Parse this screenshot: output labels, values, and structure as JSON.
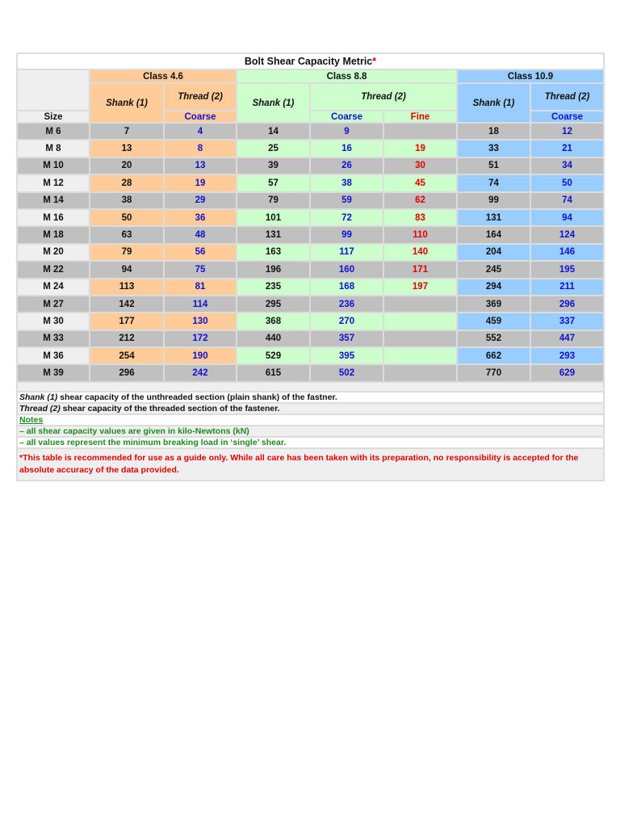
{
  "title": "Bolt Shear Capacity Metric",
  "title_mark": "*",
  "headers": {
    "size": "Size",
    "class46": "Class 4.6",
    "class88": "Class 8.8",
    "class109": "Class 10.9",
    "shank": "Shank (1)",
    "thread": "Thread (2)",
    "coarse": "Coarse",
    "fine": "Fine"
  },
  "colors": {
    "class46": "#ffcc99",
    "class88": "#ccffcc",
    "class109": "#99ccff",
    "thread_value": "#1010d0",
    "fine_value": "#e00000",
    "notes": "#1a8a1a"
  },
  "rows": [
    [
      "M 6",
      "7",
      "4",
      "14",
      "9",
      "",
      "18",
      "12"
    ],
    [
      "M 8",
      "13",
      "8",
      "25",
      "16",
      "19",
      "33",
      "21"
    ],
    [
      "M 10",
      "20",
      "13",
      "39",
      "26",
      "30",
      "51",
      "34"
    ],
    [
      "M 12",
      "28",
      "19",
      "57",
      "38",
      "45",
      "74",
      "50"
    ],
    [
      "M 14",
      "38",
      "29",
      "79",
      "59",
      "62",
      "99",
      "74"
    ],
    [
      "M 16",
      "50",
      "36",
      "101",
      "72",
      "83",
      "131",
      "94"
    ],
    [
      "M 18",
      "63",
      "48",
      "131",
      "99",
      "110",
      "164",
      "124"
    ],
    [
      "M 20",
      "79",
      "56",
      "163",
      "117",
      "140",
      "204",
      "146"
    ],
    [
      "M 22",
      "94",
      "75",
      "196",
      "160",
      "171",
      "245",
      "195"
    ],
    [
      "M 24",
      "113",
      "81",
      "235",
      "168",
      "197",
      "294",
      "211"
    ],
    [
      "M 27",
      "142",
      "114",
      "295",
      "236",
      "",
      "369",
      "296"
    ],
    [
      "M 30",
      "177",
      "130",
      "368",
      "270",
      "",
      "459",
      "337"
    ],
    [
      "M 33",
      "212",
      "172",
      "440",
      "357",
      "",
      "552",
      "447"
    ],
    [
      "M 36",
      "254",
      "190",
      "529",
      "395",
      "",
      "662",
      "293"
    ],
    [
      "M 39",
      "296",
      "242",
      "615",
      "502",
      "",
      "770",
      "629"
    ]
  ],
  "notes": {
    "shank_term": "Shank (1)",
    "shank_desc": " shear capacity of the unthreaded section (plain shank) of the fastner.",
    "thread_term": "Thread (2)",
    "thread_desc": " shear capacity of the threaded section of the fastener.",
    "notes_heading": "Notes",
    "note1": "– all shear capacity values are given in kilo-Newtons (kN)",
    "note2": "– all values represent the minimum breaking load in ‘single’ shear.",
    "disclaimer": "*This table is recommended for use as a guide only. While all care has been taken with its preparation, no responsibility is accepted for the absolute accuracy of the data provided."
  }
}
